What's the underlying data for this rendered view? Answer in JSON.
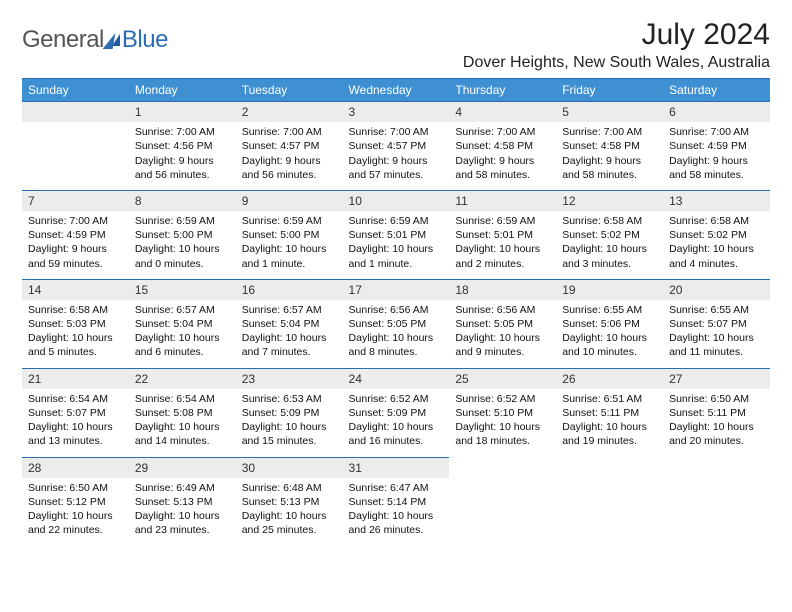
{
  "brand": {
    "part1": "General",
    "part2": "Blue"
  },
  "title": "July 2024",
  "location": "Dover Heights, New South Wales, Australia",
  "colors": {
    "header_bg": "#3e90d3",
    "header_fg": "#ffffff",
    "rule": "#2a6db5",
    "daynum_bg": "#ececec",
    "text": "#111111",
    "background": "#ffffff"
  },
  "typography": {
    "title_fontsize": 30,
    "location_fontsize": 16,
    "weekday_fontsize": 12,
    "cell_fontsize": 10.5
  },
  "weekdays": [
    "Sunday",
    "Monday",
    "Tuesday",
    "Wednesday",
    "Thursday",
    "Friday",
    "Saturday"
  ],
  "first_weekday_index": 1,
  "days": [
    {
      "n": 1,
      "sunrise": "7:00 AM",
      "sunset": "4:56 PM",
      "daylight": "9 hours and 56 minutes."
    },
    {
      "n": 2,
      "sunrise": "7:00 AM",
      "sunset": "4:57 PM",
      "daylight": "9 hours and 56 minutes."
    },
    {
      "n": 3,
      "sunrise": "7:00 AM",
      "sunset": "4:57 PM",
      "daylight": "9 hours and 57 minutes."
    },
    {
      "n": 4,
      "sunrise": "7:00 AM",
      "sunset": "4:58 PM",
      "daylight": "9 hours and 58 minutes."
    },
    {
      "n": 5,
      "sunrise": "7:00 AM",
      "sunset": "4:58 PM",
      "daylight": "9 hours and 58 minutes."
    },
    {
      "n": 6,
      "sunrise": "7:00 AM",
      "sunset": "4:59 PM",
      "daylight": "9 hours and 58 minutes."
    },
    {
      "n": 7,
      "sunrise": "7:00 AM",
      "sunset": "4:59 PM",
      "daylight": "9 hours and 59 minutes."
    },
    {
      "n": 8,
      "sunrise": "6:59 AM",
      "sunset": "5:00 PM",
      "daylight": "10 hours and 0 minutes."
    },
    {
      "n": 9,
      "sunrise": "6:59 AM",
      "sunset": "5:00 PM",
      "daylight": "10 hours and 1 minute."
    },
    {
      "n": 10,
      "sunrise": "6:59 AM",
      "sunset": "5:01 PM",
      "daylight": "10 hours and 1 minute."
    },
    {
      "n": 11,
      "sunrise": "6:59 AM",
      "sunset": "5:01 PM",
      "daylight": "10 hours and 2 minutes."
    },
    {
      "n": 12,
      "sunrise": "6:58 AM",
      "sunset": "5:02 PM",
      "daylight": "10 hours and 3 minutes."
    },
    {
      "n": 13,
      "sunrise": "6:58 AM",
      "sunset": "5:02 PM",
      "daylight": "10 hours and 4 minutes."
    },
    {
      "n": 14,
      "sunrise": "6:58 AM",
      "sunset": "5:03 PM",
      "daylight": "10 hours and 5 minutes."
    },
    {
      "n": 15,
      "sunrise": "6:57 AM",
      "sunset": "5:04 PM",
      "daylight": "10 hours and 6 minutes."
    },
    {
      "n": 16,
      "sunrise": "6:57 AM",
      "sunset": "5:04 PM",
      "daylight": "10 hours and 7 minutes."
    },
    {
      "n": 17,
      "sunrise": "6:56 AM",
      "sunset": "5:05 PM",
      "daylight": "10 hours and 8 minutes."
    },
    {
      "n": 18,
      "sunrise": "6:56 AM",
      "sunset": "5:05 PM",
      "daylight": "10 hours and 9 minutes."
    },
    {
      "n": 19,
      "sunrise": "6:55 AM",
      "sunset": "5:06 PM",
      "daylight": "10 hours and 10 minutes."
    },
    {
      "n": 20,
      "sunrise": "6:55 AM",
      "sunset": "5:07 PM",
      "daylight": "10 hours and 11 minutes."
    },
    {
      "n": 21,
      "sunrise": "6:54 AM",
      "sunset": "5:07 PM",
      "daylight": "10 hours and 13 minutes."
    },
    {
      "n": 22,
      "sunrise": "6:54 AM",
      "sunset": "5:08 PM",
      "daylight": "10 hours and 14 minutes."
    },
    {
      "n": 23,
      "sunrise": "6:53 AM",
      "sunset": "5:09 PM",
      "daylight": "10 hours and 15 minutes."
    },
    {
      "n": 24,
      "sunrise": "6:52 AM",
      "sunset": "5:09 PM",
      "daylight": "10 hours and 16 minutes."
    },
    {
      "n": 25,
      "sunrise": "6:52 AM",
      "sunset": "5:10 PM",
      "daylight": "10 hours and 18 minutes."
    },
    {
      "n": 26,
      "sunrise": "6:51 AM",
      "sunset": "5:11 PM",
      "daylight": "10 hours and 19 minutes."
    },
    {
      "n": 27,
      "sunrise": "6:50 AM",
      "sunset": "5:11 PM",
      "daylight": "10 hours and 20 minutes."
    },
    {
      "n": 28,
      "sunrise": "6:50 AM",
      "sunset": "5:12 PM",
      "daylight": "10 hours and 22 minutes."
    },
    {
      "n": 29,
      "sunrise": "6:49 AM",
      "sunset": "5:13 PM",
      "daylight": "10 hours and 23 minutes."
    },
    {
      "n": 30,
      "sunrise": "6:48 AM",
      "sunset": "5:13 PM",
      "daylight": "10 hours and 25 minutes."
    },
    {
      "n": 31,
      "sunrise": "6:47 AM",
      "sunset": "5:14 PM",
      "daylight": "10 hours and 26 minutes."
    }
  ],
  "labels": {
    "sunrise": "Sunrise:",
    "sunset": "Sunset:",
    "daylight": "Daylight:"
  }
}
